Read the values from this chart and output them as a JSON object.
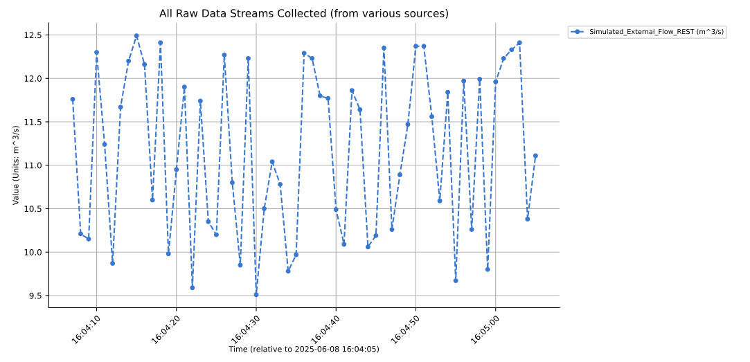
{
  "chart_data": {
    "type": "line",
    "title": "All Raw Data Streams Collected (from various sources)",
    "xlabel": "Time (relative to 2025-06-08 16:04:05)",
    "ylabel": "Value (Units: m^3/s)",
    "x": [
      "2025-06-08T16:04:07",
      "2025-06-08T16:04:08",
      "2025-06-08T16:04:09",
      "2025-06-08T16:04:10",
      "2025-06-08T16:04:11",
      "2025-06-08T16:04:12",
      "2025-06-08T16:04:13",
      "2025-06-08T16:04:14",
      "2025-06-08T16:04:15",
      "2025-06-08T16:04:16",
      "2025-06-08T16:04:17",
      "2025-06-08T16:04:18",
      "2025-06-08T16:04:19",
      "2025-06-08T16:04:20",
      "2025-06-08T16:04:21",
      "2025-06-08T16:04:22",
      "2025-06-08T16:04:23",
      "2025-06-08T16:04:24",
      "2025-06-08T16:04:25",
      "2025-06-08T16:04:26",
      "2025-06-08T16:04:27",
      "2025-06-08T16:04:28",
      "2025-06-08T16:04:29",
      "2025-06-08T16:04:30",
      "2025-06-08T16:04:31",
      "2025-06-08T16:04:32",
      "2025-06-08T16:04:33",
      "2025-06-08T16:04:34",
      "2025-06-08T16:04:35",
      "2025-06-08T16:04:36",
      "2025-06-08T16:04:37",
      "2025-06-08T16:04:38",
      "2025-06-08T16:04:39",
      "2025-06-08T16:04:40",
      "2025-06-08T16:04:41",
      "2025-06-08T16:04:42",
      "2025-06-08T16:04:43",
      "2025-06-08T16:04:44",
      "2025-06-08T16:04:45",
      "2025-06-08T16:04:46",
      "2025-06-08T16:04:47",
      "2025-06-08T16:04:48",
      "2025-06-08T16:04:49",
      "2025-06-08T16:04:50",
      "2025-06-08T16:04:51",
      "2025-06-08T16:04:52",
      "2025-06-08T16:04:53",
      "2025-06-08T16:04:54",
      "2025-06-08T16:04:55",
      "2025-06-08T16:04:56",
      "2025-06-08T16:04:57",
      "2025-06-08T16:04:58",
      "2025-06-08T16:04:59",
      "2025-06-08T16:05:00",
      "2025-06-08T16:05:01",
      "2025-06-08T16:05:02",
      "2025-06-08T16:05:03",
      "2025-06-08T16:05:04",
      "2025-06-08T16:05:05"
    ],
    "series": [
      {
        "name": "Simulated_External_Flow_REST (m^3/s)",
        "color": "#3a78d0",
        "values": [
          11.76,
          10.21,
          10.15,
          12.3,
          11.24,
          9.87,
          11.67,
          12.2,
          12.49,
          12.16,
          10.6,
          12.41,
          9.98,
          10.95,
          11.9,
          9.59,
          11.74,
          10.35,
          10.2,
          12.27,
          10.8,
          9.85,
          12.23,
          9.51,
          10.5,
          11.04,
          10.78,
          9.78,
          9.97,
          12.29,
          12.23,
          11.8,
          11.77,
          10.49,
          10.09,
          11.86,
          11.64,
          10.06,
          10.19,
          12.35,
          10.26,
          10.89,
          11.47,
          12.37,
          12.37,
          11.56,
          10.59,
          11.84,
          9.67,
          11.97,
          10.26,
          11.99,
          9.8,
          11.96,
          12.23,
          12.33,
          12.41,
          10.38,
          11.11
        ]
      }
    ],
    "xlim": [
      "2025-06-08T16:04:04",
      "2025-06-08T16:05:08"
    ],
    "xticks": [
      {
        "value": "2025-06-08T16:04:10",
        "label": "16:04:10"
      },
      {
        "value": "2025-06-08T16:04:20",
        "label": "16:04:20"
      },
      {
        "value": "2025-06-08T16:04:30",
        "label": "16:04:30"
      },
      {
        "value": "2025-06-08T16:04:40",
        "label": "16:04:40"
      },
      {
        "value": "2025-06-08T16:04:50",
        "label": "16:04:50"
      },
      {
        "value": "2025-06-08T16:05:00",
        "label": "16:05:00"
      }
    ],
    "ylim": [
      9.36,
      12.64
    ],
    "yticks": [
      {
        "value": 9.5,
        "label": "9.5"
      },
      {
        "value": 10,
        "label": "10.0"
      },
      {
        "value": 10.5,
        "label": "10.5"
      },
      {
        "value": 11,
        "label": "11.0"
      },
      {
        "value": 11.5,
        "label": "11.5"
      },
      {
        "value": 12,
        "label": "12.0"
      },
      {
        "value": 12.5,
        "label": "12.5"
      }
    ],
    "grid": true,
    "legend": "top right",
    "marker": "circle",
    "line_style": "dashed"
  }
}
